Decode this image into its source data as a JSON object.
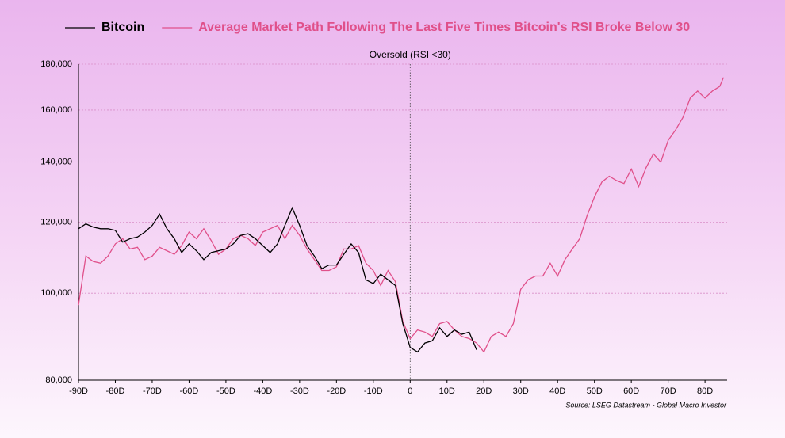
{
  "chart_data": {
    "type": "line",
    "x": [
      -90,
      -88,
      -86,
      -84,
      -82,
      -80,
      -78,
      -76,
      -74,
      -72,
      -70,
      -68,
      -66,
      -64,
      -62,
      -60,
      -58,
      -56,
      -54,
      -52,
      -50,
      -48,
      -46,
      -44,
      -42,
      -40,
      -38,
      -36,
      -34,
      -32,
      -30,
      -28,
      -26,
      -24,
      -22,
      -20,
      -18,
      -16,
      -14,
      -12,
      -10,
      -8,
      -6,
      -4,
      -2,
      0,
      2,
      4,
      6,
      8,
      10,
      12,
      14,
      16,
      18,
      20,
      22,
      24,
      26,
      28,
      30,
      32,
      34,
      36,
      38,
      40,
      42,
      44,
      46,
      48,
      50,
      52,
      54,
      56,
      58,
      60,
      62,
      64,
      66,
      68,
      70,
      72,
      74,
      76,
      78,
      80,
      82,
      84,
      85
    ],
    "series": [
      {
        "name": "Bitcoin",
        "color": "#000000",
        "values": [
          118000,
          119500,
          118500,
          118000,
          118000,
          117500,
          114000,
          115000,
          115500,
          117000,
          119000,
          122500,
          118000,
          115000,
          111000,
          113500,
          111500,
          109000,
          111000,
          111500,
          112000,
          113500,
          116000,
          116500,
          115000,
          113000,
          111000,
          113500,
          119000,
          124500,
          119000,
          113000,
          110000,
          106500,
          107500,
          107500,
          110500,
          113500,
          111000,
          103500,
          102500,
          105000,
          103500,
          102000,
          92500,
          87000,
          86000,
          88000,
          88500,
          91500,
          89500,
          91000,
          90000,
          90500,
          86500,
          null,
          null,
          null,
          null,
          null,
          null,
          null,
          null,
          null,
          null,
          null,
          null,
          null,
          null,
          null,
          null,
          null,
          null,
          null,
          null,
          null,
          null,
          null,
          null,
          null,
          null,
          null,
          null,
          null,
          null,
          null,
          null,
          null,
          null
        ]
      },
      {
        "name": "Average Market Path Following The Last Five Times Bitcoin's RSI Broke Below 30",
        "color": "#e0508a",
        "values": [
          97000,
          110000,
          108500,
          108000,
          110000,
          113500,
          115000,
          112000,
          112500,
          109000,
          110000,
          112500,
          111500,
          110500,
          113000,
          117000,
          115000,
          118000,
          114500,
          110500,
          112000,
          115000,
          116000,
          115000,
          113000,
          117000,
          118000,
          119000,
          115000,
          119000,
          116000,
          112000,
          109000,
          106000,
          106000,
          107000,
          112000,
          112000,
          113000,
          108000,
          106000,
          102000,
          106000,
          103000,
          93000,
          89000,
          91000,
          90500,
          89500,
          92500,
          93000,
          91000,
          89500,
          89000,
          88000,
          86000,
          89500,
          90500,
          89500,
          92500,
          101000,
          103500,
          104500,
          104500,
          108000,
          104500,
          109000,
          112000,
          115000,
          122000,
          128000,
          133000,
          135000,
          133500,
          132500,
          137500,
          131500,
          138000,
          143000,
          140000,
          148000,
          152000,
          157000,
          165000,
          168000,
          165000,
          168000,
          170000,
          174000
        ]
      }
    ],
    "xlim": [
      -90,
      86
    ],
    "xticks": [
      {
        "value": -90,
        "label": "-90D"
      },
      {
        "value": -80,
        "label": "-80D"
      },
      {
        "value": -70,
        "label": "-70D"
      },
      {
        "value": -60,
        "label": "-60D"
      },
      {
        "value": -50,
        "label": "-50D"
      },
      {
        "value": -40,
        "label": "-40D"
      },
      {
        "value": -30,
        "label": "-30D"
      },
      {
        "value": -20,
        "label": "-20D"
      },
      {
        "value": -10,
        "label": "-10D"
      },
      0,
      {
        "value": 10,
        "label": "10D"
      },
      {
        "value": 20,
        "label": "20D"
      },
      {
        "value": 30,
        "label": "30D"
      },
      {
        "value": 40,
        "label": "40D"
      },
      {
        "value": 50,
        "label": "50D"
      },
      {
        "value": 60,
        "label": "60D"
      },
      {
        "value": 70,
        "label": "70D"
      },
      {
        "value": 80,
        "label": "80D"
      }
    ],
    "ylim": [
      80000,
      180000
    ],
    "yticks": [
      {
        "value": 80000,
        "label": "80,000"
      },
      {
        "value": 100000,
        "label": "100,000"
      },
      {
        "value": 120000,
        "label": "120,000"
      },
      {
        "value": 140000,
        "label": "140,000"
      },
      {
        "value": 160000,
        "label": "160,000"
      },
      {
        "value": 180000,
        "label": "180,000"
      }
    ],
    "log_scale_y": true,
    "grid": true,
    "annotation": {
      "text": "Oversold (RSI <30)",
      "x": 0
    },
    "source": "Source: LSEG Datastream - Global Macro Investor"
  }
}
